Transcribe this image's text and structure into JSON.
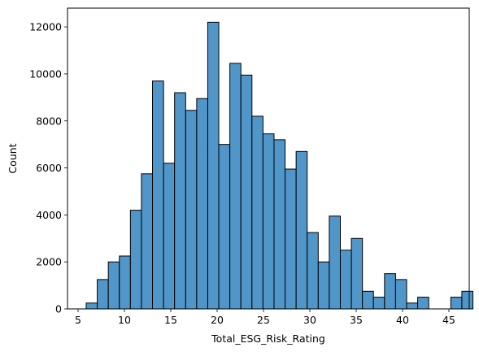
{
  "chart_data": {
    "type": "bar",
    "subtype": "histogram",
    "title": "",
    "xlabel": "Total_ESG_Risk_Rating",
    "ylabel": "Count",
    "xlim": [
      4.0,
      47.0
    ],
    "ylim": [
      0,
      12800
    ],
    "xticks": [
      5,
      10,
      15,
      20,
      25,
      30,
      35,
      40,
      45
    ],
    "yticks": [
      0,
      2000,
      4000,
      6000,
      8000,
      10000,
      12000
    ],
    "grid": false,
    "legend": "none",
    "bar_color": "#5196c9",
    "edge_color": "#000000",
    "bins": [
      {
        "x0": 6.0,
        "x1": 7.23,
        "count": 250
      },
      {
        "x0": 7.23,
        "x1": 8.47,
        "count": 1250
      },
      {
        "x0": 8.47,
        "x1": 9.7,
        "count": 2000
      },
      {
        "x0": 9.7,
        "x1": 10.93,
        "count": 2250
      },
      {
        "x0": 10.93,
        "x1": 12.17,
        "count": 4200
      },
      {
        "x0": 12.17,
        "x1": 13.4,
        "count": 5750
      },
      {
        "x0": 13.4,
        "x1": 14.63,
        "count": 9700
      },
      {
        "x0": 14.63,
        "x1": 15.87,
        "count": 6200
      },
      {
        "x0": 15.87,
        "x1": 17.1,
        "count": 9200
      },
      {
        "x0": 17.1,
        "x1": 18.33,
        "count": 8450
      },
      {
        "x0": 18.33,
        "x1": 19.57,
        "count": 8950
      },
      {
        "x0": 19.57,
        "x1": 20.8,
        "count": 12200
      },
      {
        "x0": 20.8,
        "x1": 22.03,
        "count": 7000
      },
      {
        "x0": 22.03,
        "x1": 23.27,
        "count": 10450
      },
      {
        "x0": 23.27,
        "x1": 24.5,
        "count": 9950
      },
      {
        "x0": 24.5,
        "x1": 25.73,
        "count": 8200
      },
      {
        "x0": 25.73,
        "x1": 26.97,
        "count": 7450
      },
      {
        "x0": 26.97,
        "x1": 28.2,
        "count": 7200
      },
      {
        "x0": 28.2,
        "x1": 29.43,
        "count": 5950
      },
      {
        "x0": 29.43,
        "x1": 30.67,
        "count": 6700
      },
      {
        "x0": 30.67,
        "x1": 31.9,
        "count": 3250
      },
      {
        "x0": 31.9,
        "x1": 33.13,
        "count": 2000
      },
      {
        "x0": 33.13,
        "x1": 34.37,
        "count": 3950
      },
      {
        "x0": 34.37,
        "x1": 35.6,
        "count": 2500
      },
      {
        "x0": 35.6,
        "x1": 36.83,
        "count": 3000
      },
      {
        "x0": 36.83,
        "x1": 38.07,
        "count": 750
      },
      {
        "x0": 38.07,
        "x1": 39.3,
        "count": 500
      },
      {
        "x0": 39.3,
        "x1": 40.53,
        "count": 1500
      },
      {
        "x0": 40.53,
        "x1": 41.77,
        "count": 1250
      },
      {
        "x0": 41.77,
        "x1": 43.0,
        "count": 250
      },
      {
        "x0": 43.0,
        "x1": 44.23,
        "count": 500
      },
      {
        "x0": 44.23,
        "x1": 45.47,
        "count": 0
      },
      {
        "x0": 45.47,
        "x1": 46.7,
        "count": 0
      },
      {
        "x0": 46.7,
        "x1": 47.93,
        "count": 500
      },
      {
        "x0": 47.93,
        "x1": 49.17,
        "count": 750
      }
    ]
  }
}
